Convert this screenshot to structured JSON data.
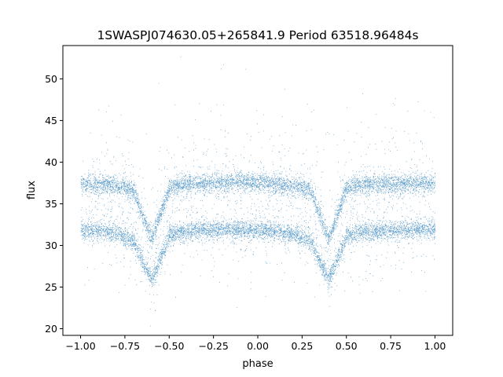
{
  "chart_data": {
    "type": "scatter",
    "title": "1SWASPJ074630.05+265841.9 Period 63518.96484s",
    "xlabel": "phase",
    "ylabel": "flux",
    "xlim": [
      -1.1,
      1.1
    ],
    "ylim": [
      19.2,
      54.0
    ],
    "xticks": [
      -1.0,
      -0.75,
      -0.5,
      -0.25,
      0.0,
      0.25,
      0.5,
      0.75,
      1.0
    ],
    "xtick_labels": [
      "−1.00",
      "−0.75",
      "−0.50",
      "−0.25",
      "0.00",
      "0.25",
      "0.50",
      "0.75",
      "1.00"
    ],
    "yticks": [
      20,
      25,
      30,
      35,
      40,
      45,
      50
    ],
    "ytick_labels": [
      "20",
      "25",
      "30",
      "35",
      "40",
      "45",
      "50"
    ],
    "grid": false,
    "marker_color": "#1f77b4",
    "series": [
      {
        "band": "upper",
        "points": [
          [
            -1.0,
            37.4
          ],
          [
            -0.9,
            37.3
          ],
          [
            -0.8,
            37.2
          ],
          [
            -0.7,
            36.6
          ],
          [
            -0.65,
            33.5
          ],
          [
            -0.6,
            30.8
          ],
          [
            -0.55,
            33.8
          ],
          [
            -0.5,
            37.0
          ],
          [
            -0.4,
            37.4
          ],
          [
            -0.25,
            37.6
          ],
          [
            -0.1,
            37.7
          ],
          [
            0.0,
            37.6
          ],
          [
            0.1,
            37.4
          ],
          [
            0.2,
            37.2
          ],
          [
            0.3,
            36.6
          ],
          [
            0.35,
            33.5
          ],
          [
            0.4,
            30.8
          ],
          [
            0.45,
            33.8
          ],
          [
            0.5,
            37.0
          ],
          [
            0.6,
            37.3
          ],
          [
            0.75,
            37.4
          ],
          [
            0.9,
            37.5
          ],
          [
            1.0,
            37.5
          ]
        ]
      },
      {
        "band": "lower",
        "points": [
          [
            -1.0,
            31.9
          ],
          [
            -0.9,
            31.8
          ],
          [
            -0.8,
            31.5
          ],
          [
            -0.7,
            30.5
          ],
          [
            -0.65,
            28.0
          ],
          [
            -0.6,
            25.9
          ],
          [
            -0.55,
            28.5
          ],
          [
            -0.5,
            31.2
          ],
          [
            -0.4,
            31.8
          ],
          [
            -0.25,
            31.9
          ],
          [
            -0.1,
            31.9
          ],
          [
            0.0,
            31.9
          ],
          [
            0.1,
            31.7
          ],
          [
            0.2,
            31.4
          ],
          [
            0.3,
            30.5
          ],
          [
            0.35,
            28.0
          ],
          [
            0.4,
            25.9
          ],
          [
            0.45,
            28.5
          ],
          [
            0.5,
            31.2
          ],
          [
            0.6,
            31.6
          ],
          [
            0.75,
            31.8
          ],
          [
            0.9,
            31.9
          ],
          [
            1.0,
            32.0
          ]
        ]
      }
    ]
  }
}
